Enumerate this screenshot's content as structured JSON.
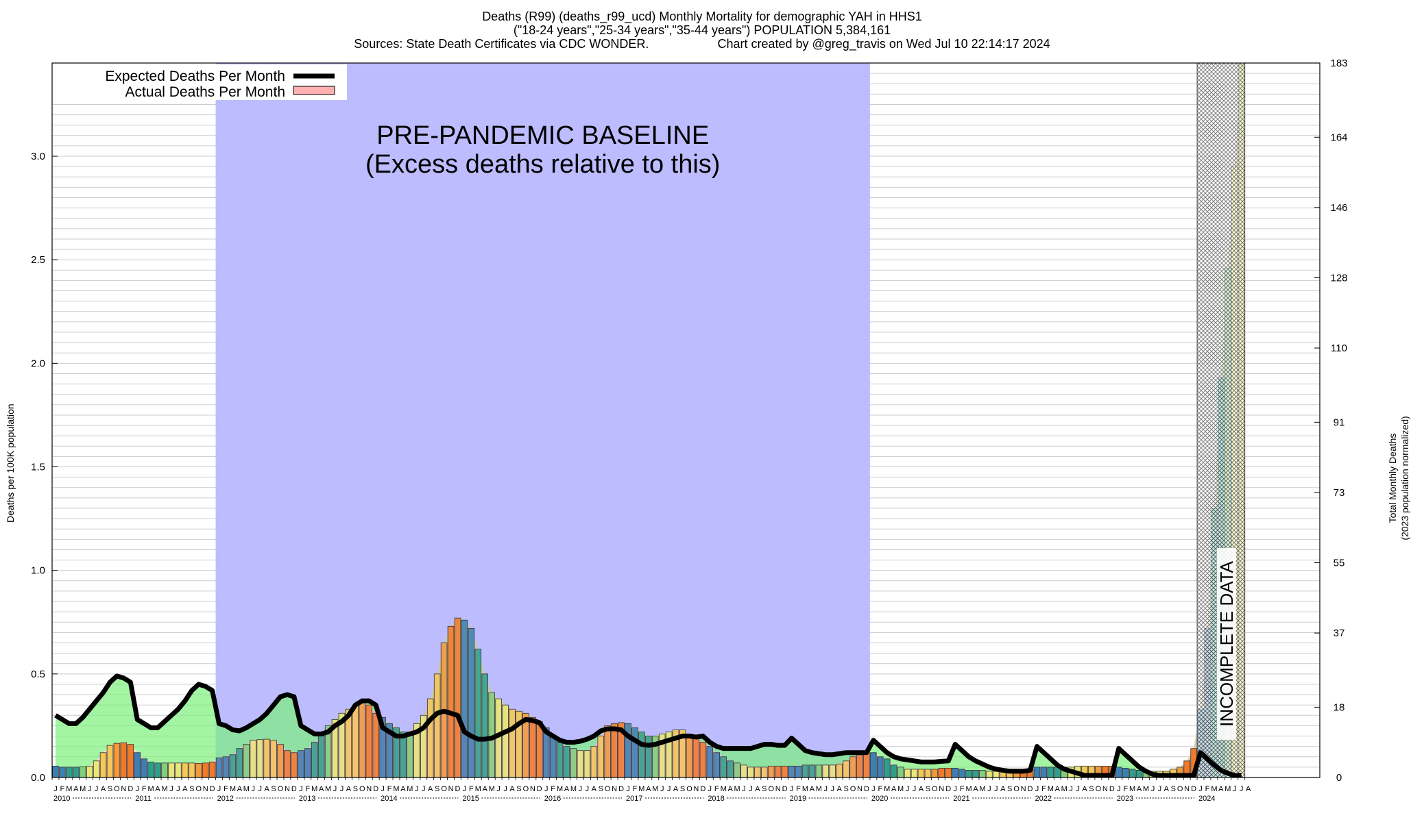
{
  "chart_data": {
    "type": "bar",
    "title": "Deaths (R99) (deaths_r99_ucd) Monthly Mortality for demographic YAH in HHS1",
    "subtitle": "(\"18-24 years\",\"25-34 years\",\"35-44 years\") POPULATION 5,384,161",
    "sources": "Sources: State Death Certificates via CDC WONDER.",
    "credit": "Chart created by @greg_travis on Wed Jul 10 22:14:17 2024",
    "ylabel": "Deaths per 100K population",
    "y2label": [
      "Total Monthly Deaths",
      "(2023 population normalized)"
    ],
    "ylim": [
      0,
      3.45
    ],
    "y2lim": [
      0,
      183
    ],
    "y_ticks": [
      "0.0",
      "0.5",
      "1.0",
      "1.5",
      "2.0",
      "2.5",
      "3.0"
    ],
    "y2_ticks": [
      "0",
      "18",
      "37",
      "55",
      "73",
      "91",
      "110",
      "128",
      "146",
      "164",
      "183"
    ],
    "grid": true,
    "legend_position": "top-left",
    "legend": [
      "Expected Deaths Per Month",
      "Actual Deaths Per Month"
    ],
    "baseline_label": [
      "PRE-PANDEMIC BASELINE",
      "(Excess deaths relative to this)"
    ],
    "baseline_period": [
      "2012-01",
      "2019-12"
    ],
    "incomplete_label": "INCOMPLETE DATA",
    "incomplete_period": [
      "2024-01",
      "2024-07"
    ],
    "month_letters": [
      "J",
      "F",
      "M",
      "A",
      "M",
      "J",
      "J",
      "A",
      "S",
      "O",
      "N",
      "D"
    ],
    "years": [
      "2010",
      "2011",
      "2012",
      "2013",
      "2014",
      "2015",
      "2016",
      "2017",
      "2018",
      "2019",
      "2020",
      "2021",
      "2022",
      "2023",
      "2024"
    ],
    "season_colors": [
      "#3b7fb3",
      "#2f9f8c",
      "#7fd07a",
      "#e8e87a",
      "#f5c85a",
      "#f29a3c",
      "#f07a2a"
    ],
    "colors": {
      "expected": "#000000",
      "actual_fill": "#ffb0b0",
      "excess_fill": "#7cf07c",
      "baseline": "#bcbcff"
    },
    "x_start": "2010-01",
    "actual": [
      0.055,
      0.05,
      0.05,
      0.05,
      0.052,
      0.055,
      0.08,
      0.12,
      0.155,
      0.165,
      0.168,
      0.16,
      0.12,
      0.09,
      0.075,
      0.07,
      0.07,
      0.07,
      0.07,
      0.07,
      0.07,
      0.068,
      0.07,
      0.075,
      0.095,
      0.1,
      0.11,
      0.14,
      0.16,
      0.18,
      0.183,
      0.185,
      0.18,
      0.16,
      0.13,
      0.12,
      0.13,
      0.14,
      0.17,
      0.2,
      0.25,
      0.28,
      0.31,
      0.33,
      0.35,
      0.36,
      0.35,
      0.31,
      0.29,
      0.26,
      0.24,
      0.22,
      0.22,
      0.26,
      0.3,
      0.38,
      0.5,
      0.65,
      0.73,
      0.77,
      0.76,
      0.72,
      0.62,
      0.5,
      0.41,
      0.38,
      0.35,
      0.33,
      0.32,
      0.31,
      0.29,
      0.27,
      0.24,
      0.2,
      0.17,
      0.15,
      0.14,
      0.13,
      0.13,
      0.15,
      0.2,
      0.25,
      0.26,
      0.265,
      0.26,
      0.24,
      0.22,
      0.2,
      0.2,
      0.21,
      0.22,
      0.23,
      0.23,
      0.21,
      0.19,
      0.17,
      0.15,
      0.12,
      0.1,
      0.08,
      0.07,
      0.06,
      0.05,
      0.05,
      0.05,
      0.055,
      0.055,
      0.055,
      0.055,
      0.055,
      0.06,
      0.06,
      0.06,
      0.06,
      0.06,
      0.065,
      0.08,
      0.1,
      0.11,
      0.12,
      0.12,
      0.1,
      0.09,
      0.06,
      0.05,
      0.04,
      0.04,
      0.04,
      0.04,
      0.04,
      0.045,
      0.045,
      0.045,
      0.04,
      0.035,
      0.035,
      0.035,
      0.03,
      0.03,
      0.03,
      0.03,
      0.03,
      0.03,
      0.04,
      0.05,
      0.05,
      0.05,
      0.05,
      0.05,
      0.05,
      0.055,
      0.055,
      0.055,
      0.055,
      0.055,
      0.055,
      0.05,
      0.045,
      0.04,
      0.035,
      0.03,
      0.03,
      0.03,
      0.03,
      0.04,
      0.05,
      0.08,
      0.14,
      0.33,
      0.72,
      1.3,
      1.93,
      2.46,
      2.95,
      3.45
    ],
    "expected": [
      0.3,
      0.28,
      0.26,
      0.26,
      0.29,
      0.33,
      0.37,
      0.41,
      0.46,
      0.49,
      0.48,
      0.46,
      0.28,
      0.26,
      0.24,
      0.24,
      0.27,
      0.3,
      0.33,
      0.37,
      0.42,
      0.45,
      0.44,
      0.42,
      0.26,
      0.25,
      0.23,
      0.225,
      0.24,
      0.26,
      0.28,
      0.31,
      0.35,
      0.39,
      0.4,
      0.39,
      0.25,
      0.23,
      0.21,
      0.21,
      0.22,
      0.25,
      0.27,
      0.3,
      0.35,
      0.37,
      0.37,
      0.35,
      0.24,
      0.22,
      0.2,
      0.2,
      0.21,
      0.22,
      0.24,
      0.28,
      0.31,
      0.32,
      0.31,
      0.3,
      0.22,
      0.2,
      0.185,
      0.185,
      0.19,
      0.205,
      0.22,
      0.235,
      0.26,
      0.28,
      0.275,
      0.265,
      0.22,
      0.2,
      0.18,
      0.17,
      0.17,
      0.175,
      0.185,
      0.2,
      0.225,
      0.235,
      0.235,
      0.23,
      0.2,
      0.18,
      0.16,
      0.155,
      0.16,
      0.17,
      0.18,
      0.19,
      0.2,
      0.2,
      0.195,
      0.2,
      0.17,
      0.15,
      0.14,
      0.14,
      0.14,
      0.14,
      0.14,
      0.15,
      0.16,
      0.16,
      0.155,
      0.155,
      0.19,
      0.16,
      0.13,
      0.12,
      0.115,
      0.11,
      0.11,
      0.115,
      0.12,
      0.12,
      0.12,
      0.12,
      0.18,
      0.15,
      0.12,
      0.1,
      0.09,
      0.085,
      0.08,
      0.075,
      0.075,
      0.075,
      0.078,
      0.08,
      0.16,
      0.13,
      0.1,
      0.08,
      0.065,
      0.05,
      0.04,
      0.035,
      0.03,
      0.03,
      0.03,
      0.035,
      0.15,
      0.12,
      0.09,
      0.06,
      0.04,
      0.03,
      0.02,
      0.01,
      0.01,
      0.01,
      0.01,
      0.01,
      0.14,
      0.11,
      0.08,
      0.05,
      0.03,
      0.015,
      0.01,
      0.01,
      0.01,
      0.01,
      0.01,
      0.01,
      0.12,
      0.09,
      0.06,
      0.035,
      0.02,
      0.01,
      0.01
    ]
  }
}
